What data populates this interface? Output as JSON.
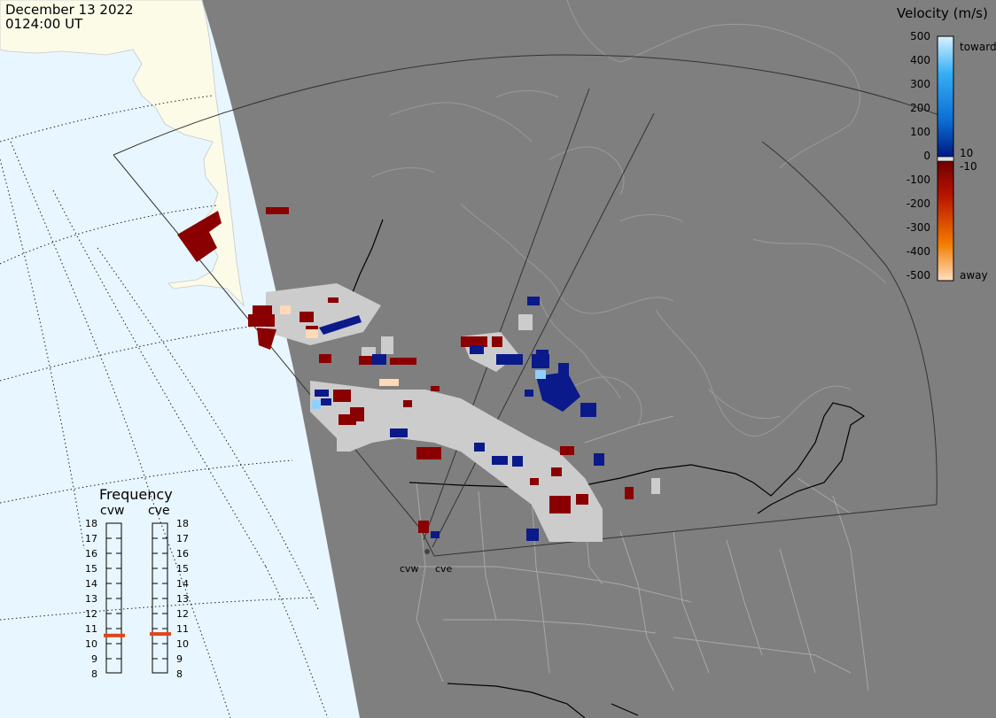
{
  "header": {
    "date": "December 13 2022",
    "time": "0124:00 UT"
  },
  "colorbar": {
    "title": "Velocity (m/s)",
    "ticks": [
      "500",
      "400",
      "300",
      "200",
      "100",
      "0",
      "-100",
      "-200",
      "-300",
      "-400",
      "-500"
    ],
    "label_toward": "toward",
    "label_away": "away",
    "label_pos": "10",
    "label_neg": "-10",
    "stops": [
      {
        "value": 500,
        "color": "#d9f1ff"
      },
      {
        "value": 350,
        "color": "#36b0f5"
      },
      {
        "value": 150,
        "color": "#0a6bd2"
      },
      {
        "value": 10,
        "color": "#001a84"
      },
      {
        "value": -10,
        "color": "#6e0000"
      },
      {
        "value": -150,
        "color": "#b81200"
      },
      {
        "value": -350,
        "color": "#f27d00"
      },
      {
        "value": -500,
        "color": "#ffe0c2"
      }
    ]
  },
  "frequency": {
    "title": "Frequency",
    "radars": [
      {
        "name": "cvw",
        "value": 10.5
      },
      {
        "name": "cve",
        "value": 10.6
      }
    ],
    "scale": [
      "18",
      "17",
      "16",
      "15",
      "14",
      "13",
      "12",
      "11",
      "10",
      "9",
      "8"
    ],
    "range": [
      8,
      18
    ]
  },
  "sites": [
    "cvw",
    "cve"
  ],
  "colors": {
    "background": "#7f7f7f",
    "ocean": "#e8f6ff",
    "land_daylight": "#fbfbe8",
    "coast_outline": "#a9a9a9",
    "ground_scatter": "#cccccc",
    "freq_marker": "#e0441a"
  }
}
